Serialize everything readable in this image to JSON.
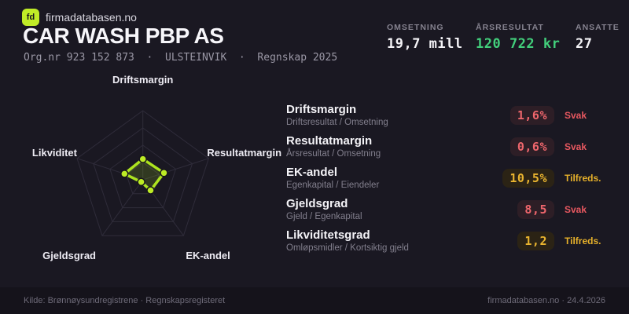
{
  "brand": {
    "logo_text": "fd",
    "site": "firmadatabasen.no"
  },
  "header": {
    "title": "CAR WASH PBP AS",
    "subtitle": "Org.nr 923 152 873  ·  ULSTEINVIK  ·  Regnskap 2025"
  },
  "stats": [
    {
      "label": "OMSETNING",
      "value": "19,7 mill",
      "tone": "plain"
    },
    {
      "label": "ÅRSRESULTAT",
      "value": "120 722 kr",
      "tone": "green"
    },
    {
      "label": "ANSATTE",
      "value": "27",
      "tone": "plain"
    }
  ],
  "chart_data": {
    "type": "radar",
    "categories": [
      "Driftsmargin",
      "Resultatmargin",
      "EK-andel",
      "Gjeldsgrad",
      "Likviditet"
    ],
    "values_norm": [
      0.3,
      0.32,
      0.19,
      0.04,
      0.28
    ],
    "metric_values": [
      "1,6%",
      "0,6%",
      "10,5%",
      "8,5",
      "1,2"
    ],
    "rings": [
      0.25,
      0.5,
      0.75,
      1
    ],
    "axis_max": 1,
    "stroke": "#ade41f",
    "point_color": "#bdec25",
    "fill": "rgba(173,228,31,0.16)",
    "grid_color": "#2f2c3a",
    "legend": "none",
    "title": ""
  },
  "metrics": [
    {
      "name": "Driftsmargin",
      "formula": "Driftsresultat / Omsetning",
      "value": "1,6%",
      "status": "Svak",
      "tone": "red"
    },
    {
      "name": "Resultatmargin",
      "formula": "Årsresultat / Omsetning",
      "value": "0,6%",
      "status": "Svak",
      "tone": "red"
    },
    {
      "name": "EK-andel",
      "formula": "Egenkapital / Eiendeler",
      "value": "10,5%",
      "status": "Tilfreds.",
      "tone": "amber"
    },
    {
      "name": "Gjeldsgrad",
      "formula": "Gjeld / Egenkapital",
      "value": "8,5",
      "status": "Svak",
      "tone": "red"
    },
    {
      "name": "Likviditetsgrad",
      "formula": "Omløpsmidler / Kortsiktig gjeld",
      "value": "1,2",
      "status": "Tilfreds.",
      "tone": "amber"
    }
  ],
  "footer": {
    "left": "Kilde: Brønnøysundregistrene · Regnskapsregisteret",
    "right": "firmadatabasen.no · 24.4.2026"
  },
  "colors": {
    "background": "#1a1822",
    "lime": "#c0ec27",
    "green": "#42ce7b",
    "red": "#ee666c",
    "amber": "#e9b42f"
  }
}
